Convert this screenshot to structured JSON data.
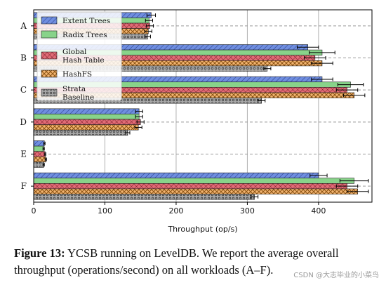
{
  "chart_data": {
    "type": "bar",
    "orientation": "horizontal",
    "categories": [
      "A",
      "B",
      "C",
      "D",
      "E",
      "F"
    ],
    "xlabel": "Throughput (op/s)",
    "ylabel": "",
    "xlim": [
      0,
      475
    ],
    "xticks": [
      0,
      100,
      200,
      300,
      400
    ],
    "grid": "vertical solid, horizontal dashed",
    "legend_position": "top-left",
    "series": [
      {
        "name": "Extent Trees",
        "color": "#6f8ee0",
        "hatch": "diagonal",
        "values": [
          165,
          385,
          405,
          148,
          15,
          400
        ],
        "errors": [
          6,
          15,
          15,
          5,
          1,
          12
        ]
      },
      {
        "name": "Radix Trees",
        "color": "#88d38a",
        "hatch": "none",
        "values": [
          162,
          405,
          445,
          148,
          14,
          450
        ],
        "errors": [
          5,
          18,
          18,
          5,
          1,
          20
        ]
      },
      {
        "name": "Global Hash Table",
        "color": "#e06b76",
        "hatch": "cross",
        "values": [
          163,
          395,
          440,
          150,
          16,
          440
        ],
        "errors": [
          5,
          15,
          15,
          5,
          1,
          15
        ]
      },
      {
        "name": "HashFS",
        "color": "#f2b471",
        "hatch": "xx",
        "values": [
          161,
          405,
          450,
          147,
          17,
          455
        ],
        "errors": [
          5,
          15,
          15,
          5,
          1,
          15
        ]
      },
      {
        "name": "Strata Baseline",
        "color": "#a8a8a8",
        "hatch": "dots",
        "values": [
          160,
          328,
          320,
          132,
          14,
          310
        ],
        "errors": [
          4,
          5,
          5,
          3,
          1,
          5
        ]
      }
    ],
    "legend_labels": [
      [
        "Extent Trees"
      ],
      [
        "Radix Trees"
      ],
      [
        "Global",
        "Hash Table"
      ],
      [
        "HashFS"
      ],
      [
        "Strata",
        "Baseline"
      ]
    ]
  },
  "caption": {
    "label": "Figure 13:",
    "text": " YCSB running on LevelDB. We report the average overall throughput (operations/second) on all workloads (A–F)."
  },
  "watermark": "CSDN @大志毕业的小菜鸟"
}
